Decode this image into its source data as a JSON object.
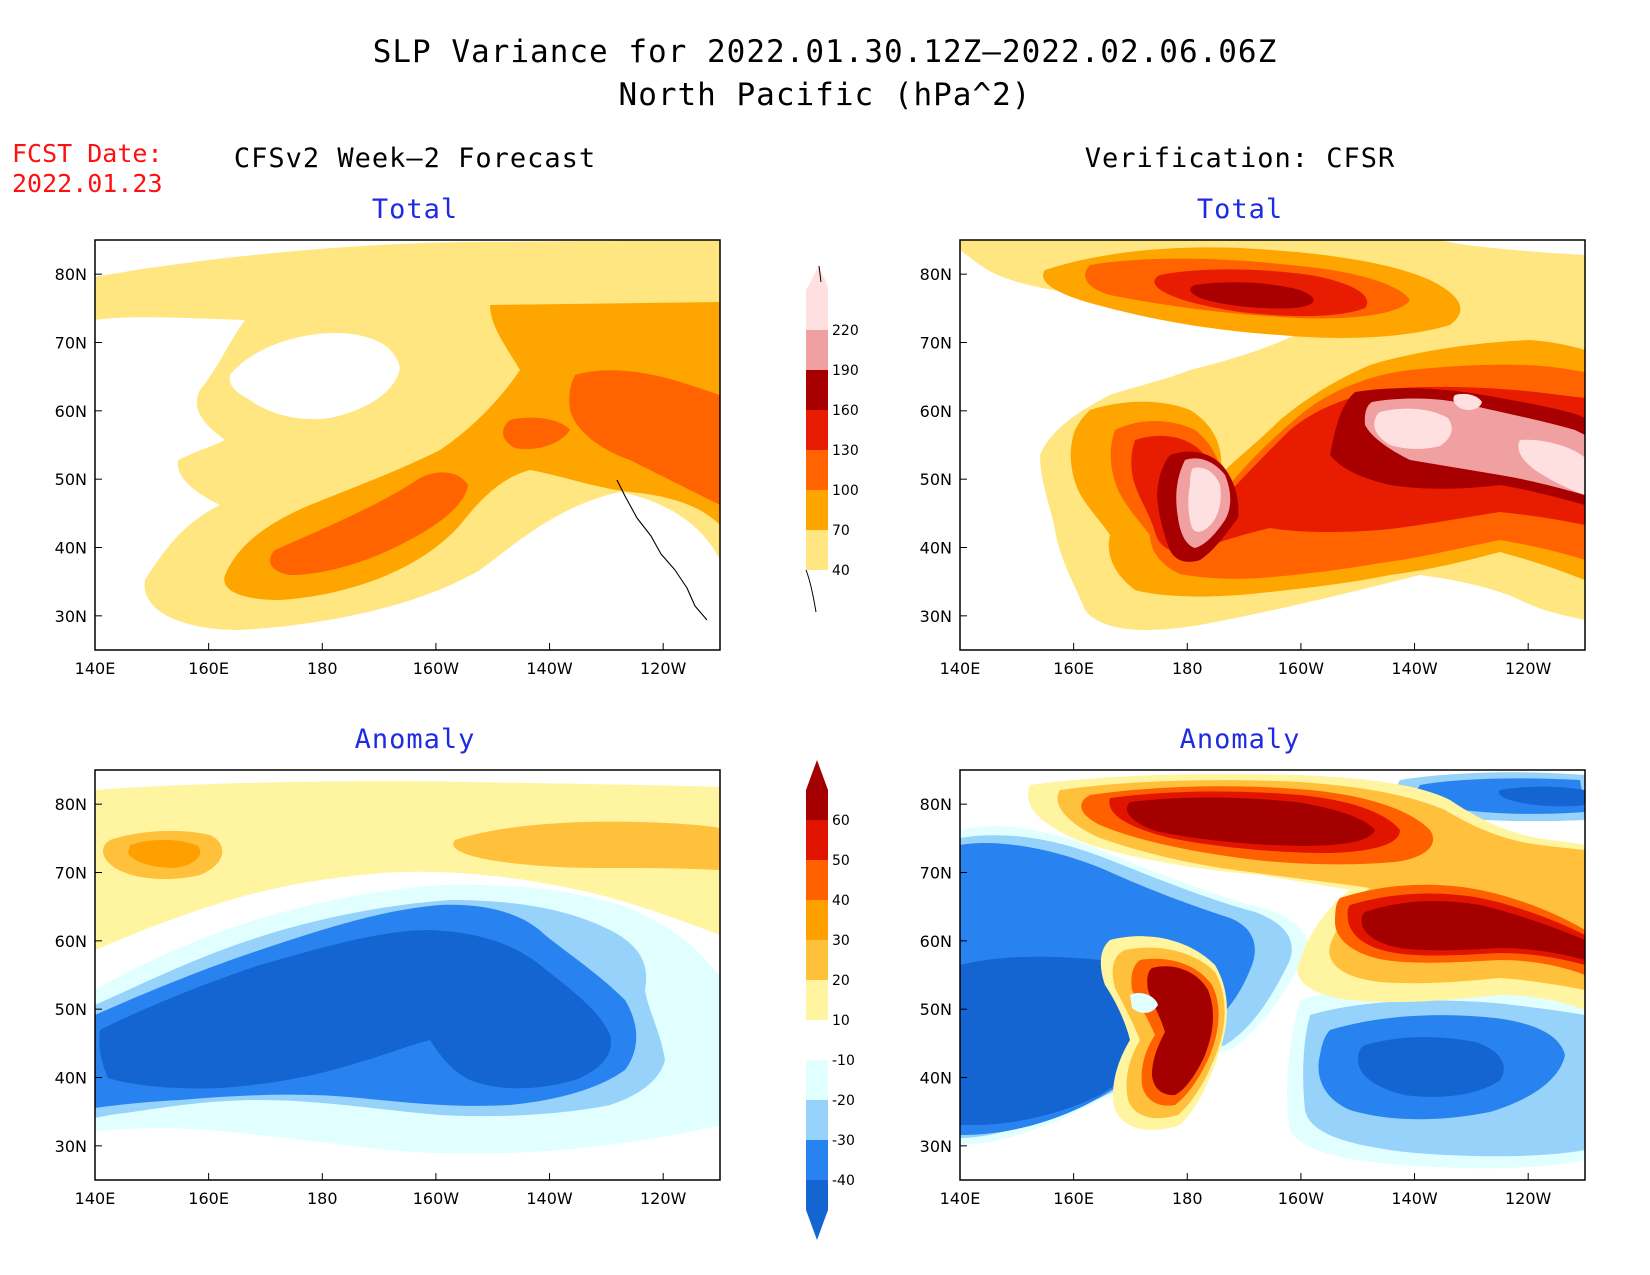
{
  "title_line1": "SLP Variance for 2022.01.30.12Z–2022.02.06.06Z",
  "title_line2": "North Pacific (hPa^2)",
  "fcst_label": "FCST Date:",
  "fcst_date": "2022.01.23",
  "columns": [
    {
      "heading": "CFSv2 Week–2 Forecast"
    },
    {
      "heading": "Verification: CFSR"
    }
  ],
  "rows": [
    {
      "subtitle": "Total"
    },
    {
      "subtitle": "Anomaly"
    }
  ],
  "map_domain": {
    "lon_range": [
      "140E",
      "110W"
    ],
    "lat_range": [
      "25N",
      "85N"
    ]
  },
  "lon_ticks": [
    "140E",
    "160E",
    "180",
    "160W",
    "140W",
    "120W"
  ],
  "lat_ticks": [
    "30N",
    "40N",
    "50N",
    "60N",
    "70N",
    "80N"
  ],
  "colorbars": {
    "total": {
      "levels": [
        "40",
        "70",
        "100",
        "130",
        "160",
        "190",
        "220"
      ],
      "colors": [
        "#ffe680",
        "#ffa500",
        "#ff6400",
        "#e81c00",
        "#a80000",
        "#f0a0a0",
        "#ffe0e0"
      ]
    },
    "anomaly": {
      "levels": [
        "-40",
        "-30",
        "-20",
        "-10",
        "10",
        "20",
        "30",
        "40",
        "50",
        "60"
      ],
      "colors": [
        "#1464d2",
        "#2882f0",
        "#96d2fa",
        "#e1ffff",
        "#ffffff",
        "#fff5a0",
        "#ffc03c",
        "#ffa000",
        "#ff6000",
        "#e11400",
        "#a50000"
      ]
    }
  }
}
